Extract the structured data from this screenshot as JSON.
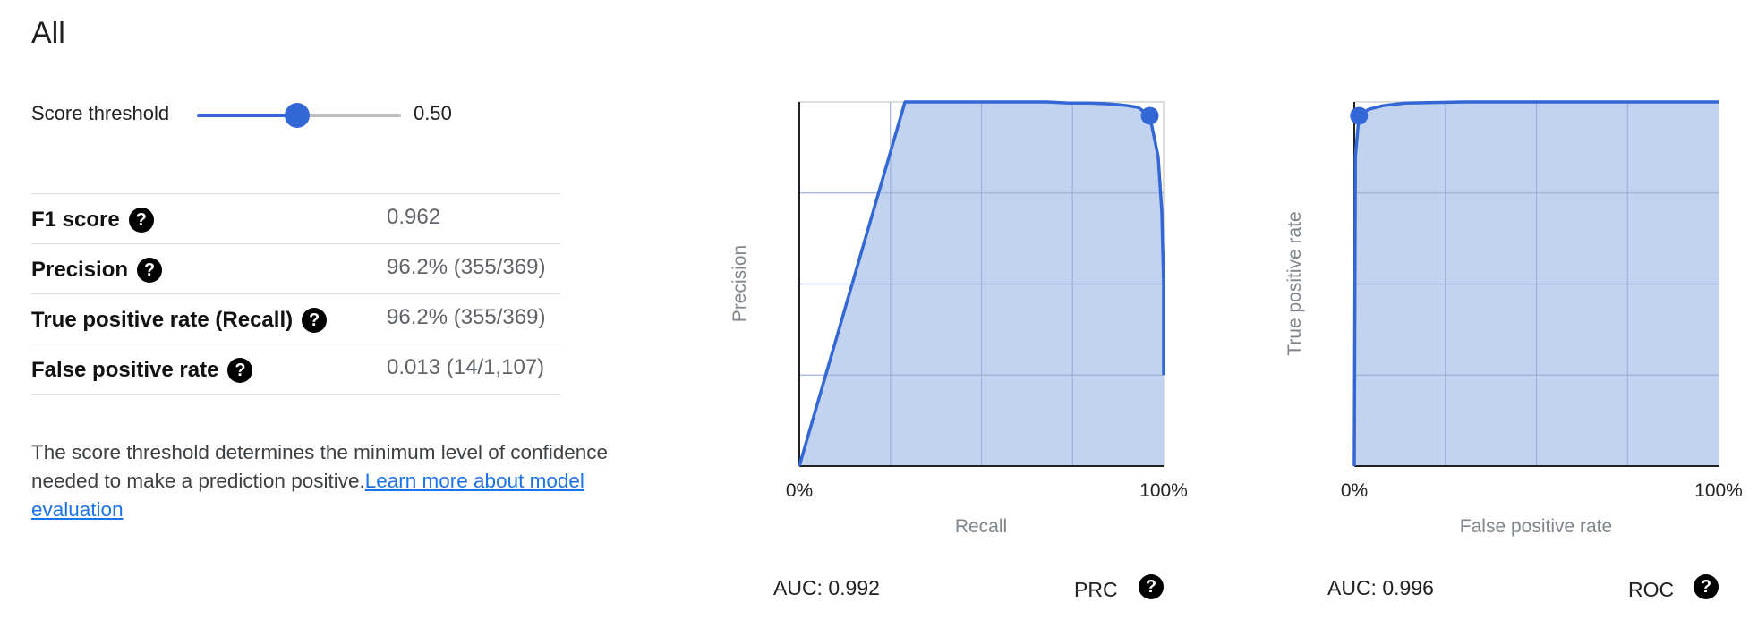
{
  "page": {
    "title": "All"
  },
  "threshold": {
    "label": "Score threshold",
    "value": 0.5,
    "value_text": "0.50"
  },
  "metrics": [
    {
      "label": "F1 score",
      "value": "0.962"
    },
    {
      "label": "Precision",
      "value": "96.2% (355/369)"
    },
    {
      "label": "True positive rate (Recall)",
      "value": "96.2% (355/369)"
    },
    {
      "label": "False positive rate",
      "value": "0.013 (14/1,107)"
    }
  ],
  "description": {
    "text": "The score threshold determines the minimum level of confidence needed to make a prediction positive.",
    "link": "Learn more about model evaluation"
  },
  "help_glyph": "?",
  "colors": {
    "accent": "#3367d6",
    "area_fill": "#c2d3f0",
    "grid": "#9fb1d8"
  },
  "chart_data": [
    {
      "type": "area",
      "name": "PRC",
      "xlabel": "Recall",
      "ylabel": "Precision",
      "xlim": [
        0,
        1
      ],
      "ylim": [
        0,
        1
      ],
      "x_ticks": [
        "0%",
        "100%"
      ],
      "grid": true,
      "x": [
        0,
        0.29,
        0.68,
        0.74,
        0.8,
        0.84,
        0.87,
        0.9,
        0.93,
        0.962,
        0.985,
        0.995,
        1.0,
        1.0
      ],
      "y": [
        0,
        1.0,
        1.0,
        0.997,
        0.997,
        0.995,
        0.993,
        0.99,
        0.985,
        0.962,
        0.85,
        0.7,
        0.5,
        0.25
      ],
      "threshold_point": {
        "x": 0.962,
        "y": 0.962
      },
      "auc_text": "AUC: 0.992",
      "label": "PRC"
    },
    {
      "type": "area",
      "name": "ROC",
      "xlabel": "False positive rate",
      "ylabel": "True positive rate",
      "xlim": [
        0,
        1
      ],
      "ylim": [
        0,
        1
      ],
      "x_ticks": [
        "0%",
        "100%"
      ],
      "grid": true,
      "x": [
        0,
        0.003,
        0.013,
        0.04,
        0.08,
        0.14,
        0.3,
        1.0
      ],
      "y": [
        0,
        0.85,
        0.962,
        0.98,
        0.99,
        0.997,
        1.0,
        1.0
      ],
      "threshold_point": {
        "x": 0.013,
        "y": 0.962
      },
      "auc_text": "AUC: 0.996",
      "label": "ROC"
    }
  ]
}
